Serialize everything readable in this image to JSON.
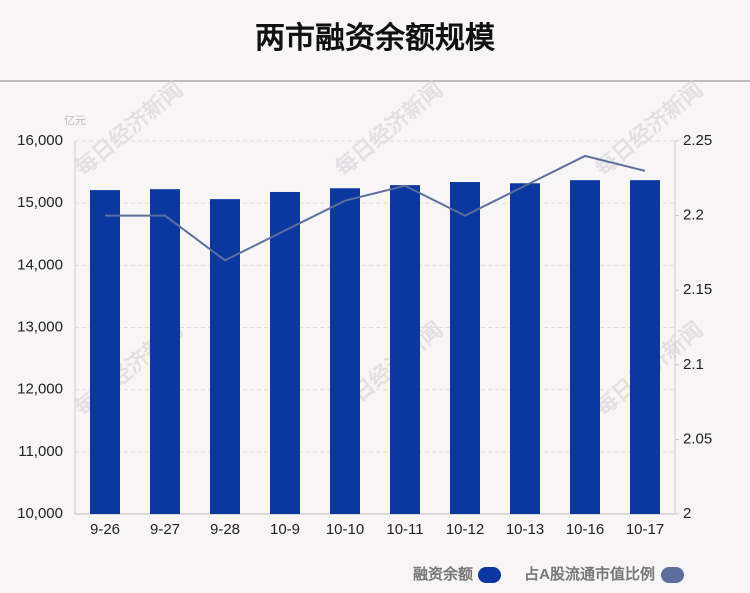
{
  "chart_data": {
    "type": "bar-line",
    "title": "两市融资余额规模",
    "y_unit": "亿元",
    "watermark": "每日经济新闻",
    "categories": [
      "9-26",
      "9-27",
      "9-28",
      "10-9",
      "10-10",
      "10-11",
      "10-12",
      "10-13",
      "10-16",
      "10-17"
    ],
    "series": [
      {
        "name": "融资余额",
        "type": "bar",
        "color": "#0b37a0",
        "axis": "y",
        "values": [
          15210,
          15225,
          15065,
          15180,
          15240,
          15290,
          15340,
          15320,
          15370,
          15370
        ]
      },
      {
        "name": "占A股流通市值比例",
        "type": "line",
        "color": "#5b6e9c",
        "axis": "y2",
        "values": [
          2.2,
          2.2,
          2.17,
          2.19,
          2.21,
          2.22,
          2.2,
          2.22,
          2.24,
          2.23
        ]
      }
    ],
    "ylim": [
      10000,
      16000
    ],
    "yticks": [
      {
        "value": 10000,
        "label": "10,000"
      },
      {
        "value": 11000,
        "label": "11,000"
      },
      {
        "value": 12000,
        "label": "12,000"
      },
      {
        "value": 13000,
        "label": "13,000"
      },
      {
        "value": 14000,
        "label": "14,000"
      },
      {
        "value": 15000,
        "label": "15,000"
      },
      {
        "value": 16000,
        "label": "16,000"
      }
    ],
    "y2lim": [
      2,
      2.25
    ],
    "y2ticks": [
      2,
      2.05,
      2.1,
      2.15,
      2.2,
      2.25
    ],
    "grid": true
  }
}
